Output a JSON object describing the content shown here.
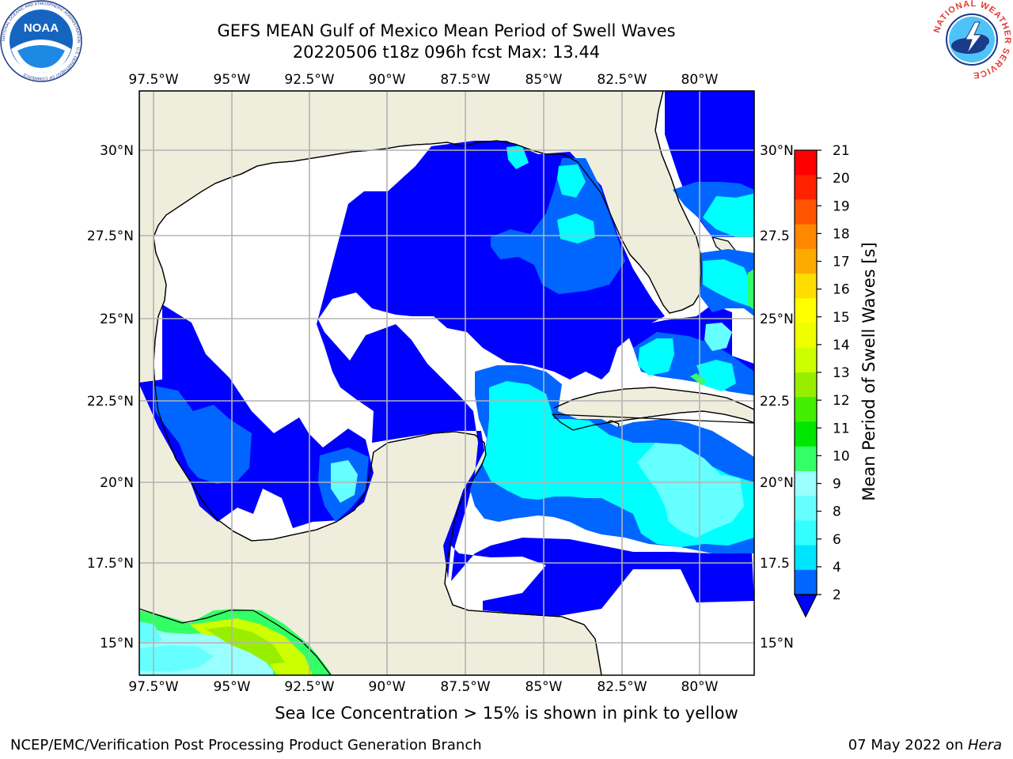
{
  "header": {
    "title_line1": "GEFS MEAN Gulf of Mexico Mean Period of Swell Waves",
    "title_line2": "20220506 t18z 096h fcst   Max: 13.44"
  },
  "map": {
    "lon_labels": [
      "97.5°W",
      "95°W",
      "92.5°W",
      "90°W",
      "87.5°W",
      "85°W",
      "82.5°W",
      "80°W"
    ],
    "lat_labels_left": [
      "30°N",
      "27.5°N",
      "25°N",
      "22.5°N",
      "20°N",
      "17.5°N",
      "15°N"
    ],
    "lat_labels_right": [
      "30°N",
      "27.5",
      "25°N",
      "22.5",
      "20°N",
      "17.5",
      "15°N"
    ],
    "land_color": "#efeedd",
    "ocean_color": "#ffffff",
    "grid_color": "#b3b3b3"
  },
  "colorbar": {
    "label": "Mean Period of Swell Waves [s]",
    "ticks": [
      "2",
      "4",
      "6",
      "8",
      "9",
      "10",
      "11",
      "12",
      "13",
      "14",
      "15",
      "16",
      "17",
      "18",
      "19",
      "20",
      "21"
    ],
    "colors": [
      "#0066ff",
      "#00e5ff",
      "#33ffff",
      "#66ffff",
      "#99ffff",
      "#33ff66",
      "#00e600",
      "#44ee00",
      "#99ee00",
      "#ccff00",
      "#eeff00",
      "#ffff00",
      "#ffdd00",
      "#ffaa00",
      "#ff8800",
      "#ff5500",
      "#ff2200",
      "#ff0000"
    ],
    "extend_color": "#0000ff"
  },
  "caption": "Sea Ice Concentration > 15% is shown in pink to yellow",
  "footer": {
    "left": "NCEP/EMC/Verification Post Processing Product Generation Branch",
    "date": "07 May 2022 on ",
    "host": "Hera"
  },
  "logos": {
    "noaa_text": "NOAA",
    "noaa_ring": "NATIONAL OCEANIC AND ATMOSPHERIC ADMINISTRATION · U.S. DEPARTMENT OF COMMERCE",
    "nws_ring": "NATIONAL WEATHER SERVICE"
  }
}
